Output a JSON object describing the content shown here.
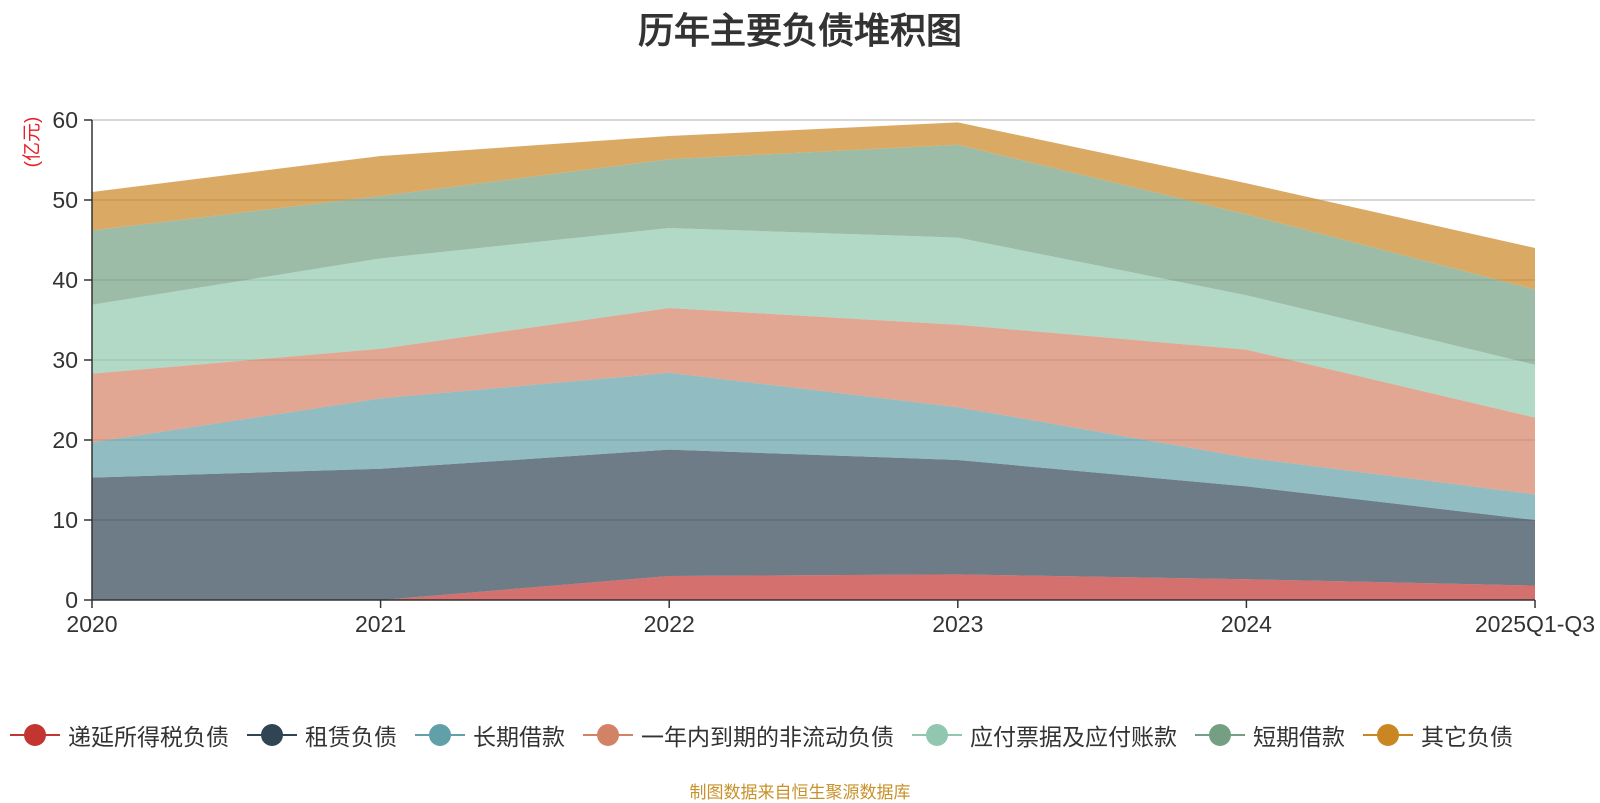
{
  "title": "历年主要负债堆积图",
  "footer": "制图数据来自恒生聚源数据库",
  "chart_data": {
    "type": "area",
    "stacked": true,
    "title": "历年主要负债堆积图",
    "ylabel": "(亿元)",
    "xlabel": "",
    "categories": [
      "2020",
      "2021",
      "2022",
      "2023",
      "2024",
      "2025Q1-Q3"
    ],
    "yticks": [
      0,
      10,
      20,
      30,
      40,
      50,
      60
    ],
    "ylim": [
      0,
      60
    ],
    "grid": true,
    "legend_position": "bottom",
    "series": [
      {
        "name": "递延所得税负债",
        "color": "#c23531",
        "values": [
          0,
          0,
          3.0,
          3.2,
          2.6,
          1.8
        ]
      },
      {
        "name": "租赁负债",
        "color": "#2f4554",
        "values": [
          15.3,
          16.4,
          15.8,
          14.3,
          11.6,
          8.2
        ]
      },
      {
        "name": "长期借款",
        "color": "#61a0a8",
        "values": [
          4.4,
          8.8,
          9.6,
          6.6,
          3.6,
          3.2
        ]
      },
      {
        "name": "一年内到期的非流动负债",
        "color": "#d48265",
        "values": [
          8.6,
          6.2,
          8.1,
          10.3,
          13.5,
          9.6
        ]
      },
      {
        "name": "应付票据及应付账款",
        "color": "#91c7ae",
        "values": [
          8.6,
          11.3,
          10.0,
          10.9,
          6.8,
          6.6
        ]
      },
      {
        "name": "短期借款",
        "color": "#749f83",
        "values": [
          9.3,
          7.8,
          8.6,
          11.6,
          10.1,
          9.4
        ]
      },
      {
        "name": "其它负债",
        "color": "#ca8622",
        "values": [
          4.8,
          5.0,
          2.9,
          2.8,
          3.9,
          5.2
        ]
      }
    ]
  }
}
